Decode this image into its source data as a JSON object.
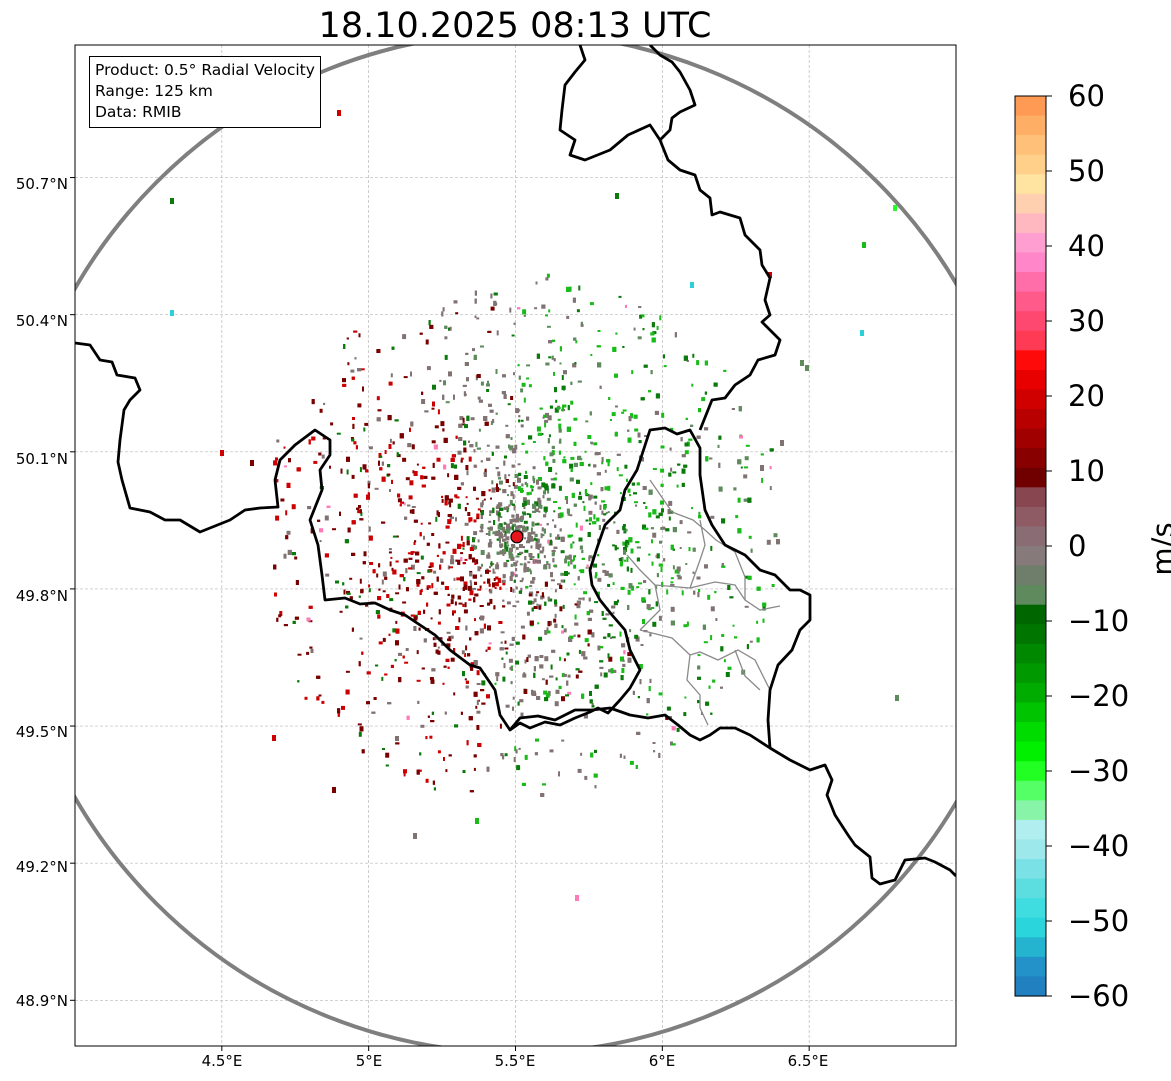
{
  "title": "18.10.2025 08:13 UTC",
  "info_box": {
    "product": "Product: 0.5° Radial Velocity",
    "range": "Range: 125 km",
    "data": "Data: RMIB"
  },
  "axes": {
    "lon_min": 4.0,
    "lon_max": 7.0,
    "lat_min": 48.8,
    "lat_max": 50.99,
    "x_tick_labels": [
      "4.5°E",
      "5°E",
      "5.5°E",
      "6°E",
      "6.5°E"
    ],
    "y_tick_labels": [
      "50.7°N",
      "50.4°N",
      "50.1°N",
      "49.8°N",
      "49.5°N",
      "49.2°N",
      "48.9°N"
    ]
  },
  "radar_site": {
    "lon": 5.505,
    "lat": 49.914,
    "color": "#e8141c"
  },
  "colorbar": {
    "label": "m/s",
    "tick_labels": [
      "60",
      "50",
      "40",
      "30",
      "20",
      "10",
      "0",
      "−10",
      "−20",
      "−30",
      "−40",
      "−50",
      "−60"
    ],
    "colors_top_to_bottom": [
      "#ff9a55",
      "#ffae66",
      "#ffc07a",
      "#ffd08a",
      "#ffe3a0",
      "#ffd0b0",
      "#ffb8c0",
      "#ff9ed0",
      "#ff86c8",
      "#ff6ea8",
      "#ff5a8a",
      "#ff4870",
      "#ff3a55",
      "#ff0a0a",
      "#e80000",
      "#d00000",
      "#b80000",
      "#a00000",
      "#880000",
      "#700000",
      "#884650",
      "#8e5a64",
      "#8a6c74",
      "#867a7a",
      "#6e7e6a",
      "#5e8a5e",
      "#006600",
      "#007600",
      "#008800",
      "#009a00",
      "#00ac00",
      "#00c400",
      "#00dc00",
      "#00f000",
      "#22ff22",
      "#55ff66",
      "#88f4a8",
      "#b0eef0",
      "#9ce8ea",
      "#7ae2e6",
      "#5cdde0",
      "#40dde0",
      "#2ad6dc",
      "#24b4d0",
      "#2292c8",
      "#2080c0"
    ]
  },
  "palette": {
    "maroon": "#7a0000",
    "red": "#cc0000",
    "grey_velocity": "#827373",
    "dark_green": "#0a7a0a",
    "green": "#19bb19",
    "gray_green": "#5e8a5e",
    "pink": "#ff7ab8",
    "cyan": "#2cd0d8",
    "bright_green": "#22ff22"
  }
}
